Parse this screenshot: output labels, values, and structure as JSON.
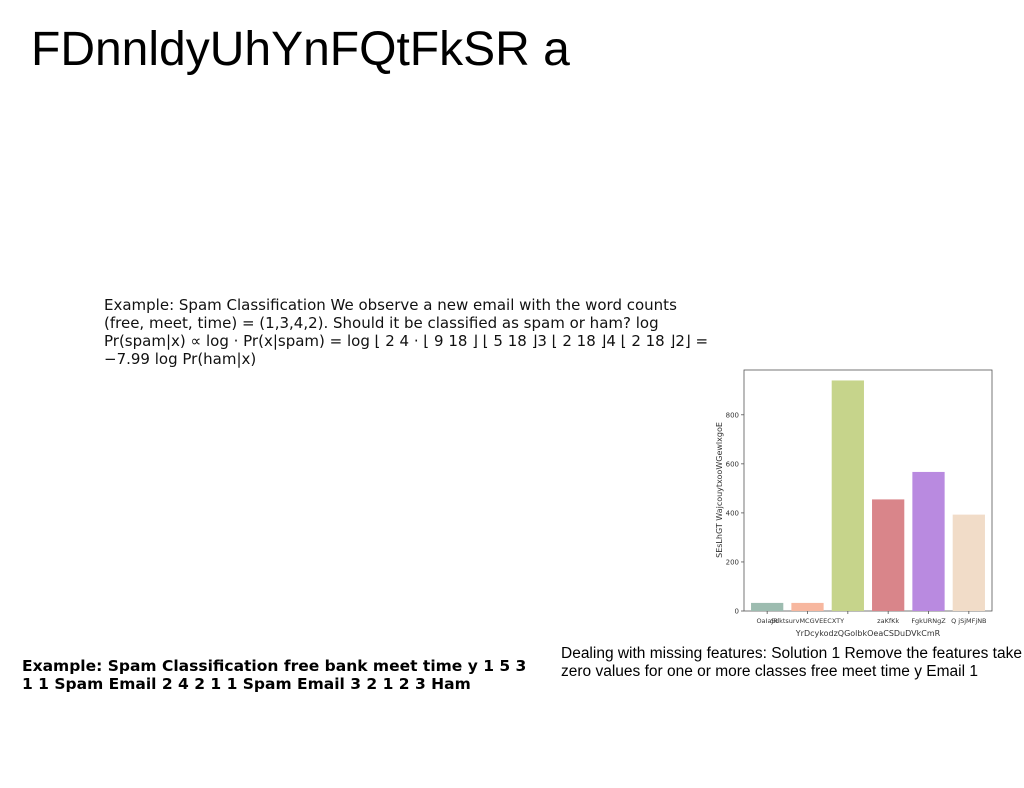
{
  "slide": {
    "title": "FDnnldyUhYnFQtFkSR a",
    "paragraph_top": "Example: Spam Classification We observe a new email with the word counts (free, meet, time) = (1,3,4,2). Should it be classified as spam or ham? log Pr(spam|x) ∝ log · Pr(x|spam) = log ⌊ 2 4 · ⌊ 9 18 ⌋ ⌊ 5 18 ⌋3 ⌊ 2 18 ⌋4 ⌊ 2 18 ⌋2⌋ = −7.99 log Pr(ham|x)",
    "paragraph_bottom_left": "Example: Spam Classification free bank meet time y 1 5 3 1 1 Spam Email 2 4 2 1 1 Spam Email 3 2 1 2 3 Ham",
    "paragraph_bottom_right": "Dealing with missing features: Solution 1 Remove the features take zero values for one or more classes free meet time y Email 1"
  },
  "chart_data": {
    "type": "bar",
    "categories": [
      "OaIaJR",
      "SdktsurvMCGVEECXTY",
      "",
      "zaKfKk",
      "FgkURNgZ",
      "Q jSjMFjNB"
    ],
    "values": [
      33,
      33,
      940,
      455,
      567,
      393
    ],
    "colors": [
      "#9dbcb0",
      "#f7b79f",
      "#c6d48b",
      "#d9858a",
      "#b98ae0",
      "#f1dcc8"
    ],
    "xlabel": "YrDcykodzQGolbkOeaCSDuDVkCmR",
    "ylabel": "SEsLhGT WajcouytxooWGewlxgoE",
    "ylim": [
      0,
      1000
    ],
    "yticks": [
      0,
      200,
      400,
      600,
      800
    ]
  }
}
